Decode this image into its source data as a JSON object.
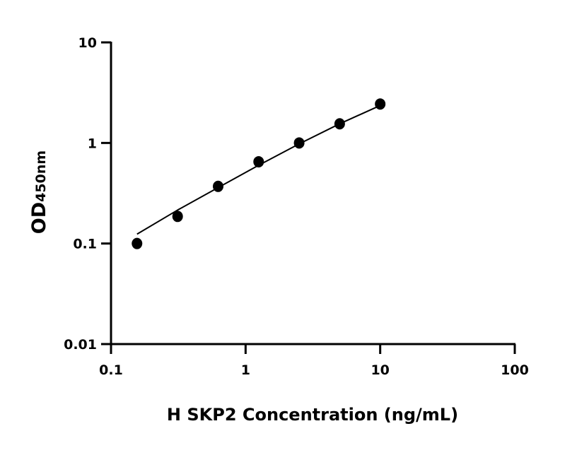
{
  "chart_data": {
    "type": "scatter",
    "title": "",
    "xlabel": "H SKP2 Concentration (ng/mL)",
    "ylabel_main": "OD",
    "ylabel_sub": "450nm",
    "x_scale": "log",
    "y_scale": "log",
    "xlim": [
      0.1,
      100
    ],
    "ylim": [
      0.01,
      10
    ],
    "x_ticks": [
      {
        "v": 0.1,
        "label": "0.1"
      },
      {
        "v": 1,
        "label": "1"
      },
      {
        "v": 10,
        "label": "10"
      },
      {
        "v": 100,
        "label": "100"
      }
    ],
    "y_ticks": [
      {
        "v": 0.01,
        "label": "0.01"
      },
      {
        "v": 0.1,
        "label": "0.1"
      },
      {
        "v": 1,
        "label": "1"
      },
      {
        "v": 10,
        "label": "10"
      }
    ],
    "grid": false,
    "points": {
      "x": [
        0.156,
        0.3125,
        0.625,
        1.25,
        2.5,
        5,
        10
      ],
      "y": [
        0.1,
        0.186,
        0.37,
        0.65,
        1.0,
        1.55,
        2.44
      ]
    },
    "fit_curve": {
      "x": [
        0.156,
        0.3125,
        0.625,
        1.25,
        2.5,
        5,
        10
      ],
      "y": [
        0.124,
        0.215,
        0.36,
        0.6,
        0.98,
        1.55,
        2.36
      ]
    },
    "colors": {
      "marker": "#000000",
      "line": "#000000",
      "axis": "#000000"
    }
  }
}
